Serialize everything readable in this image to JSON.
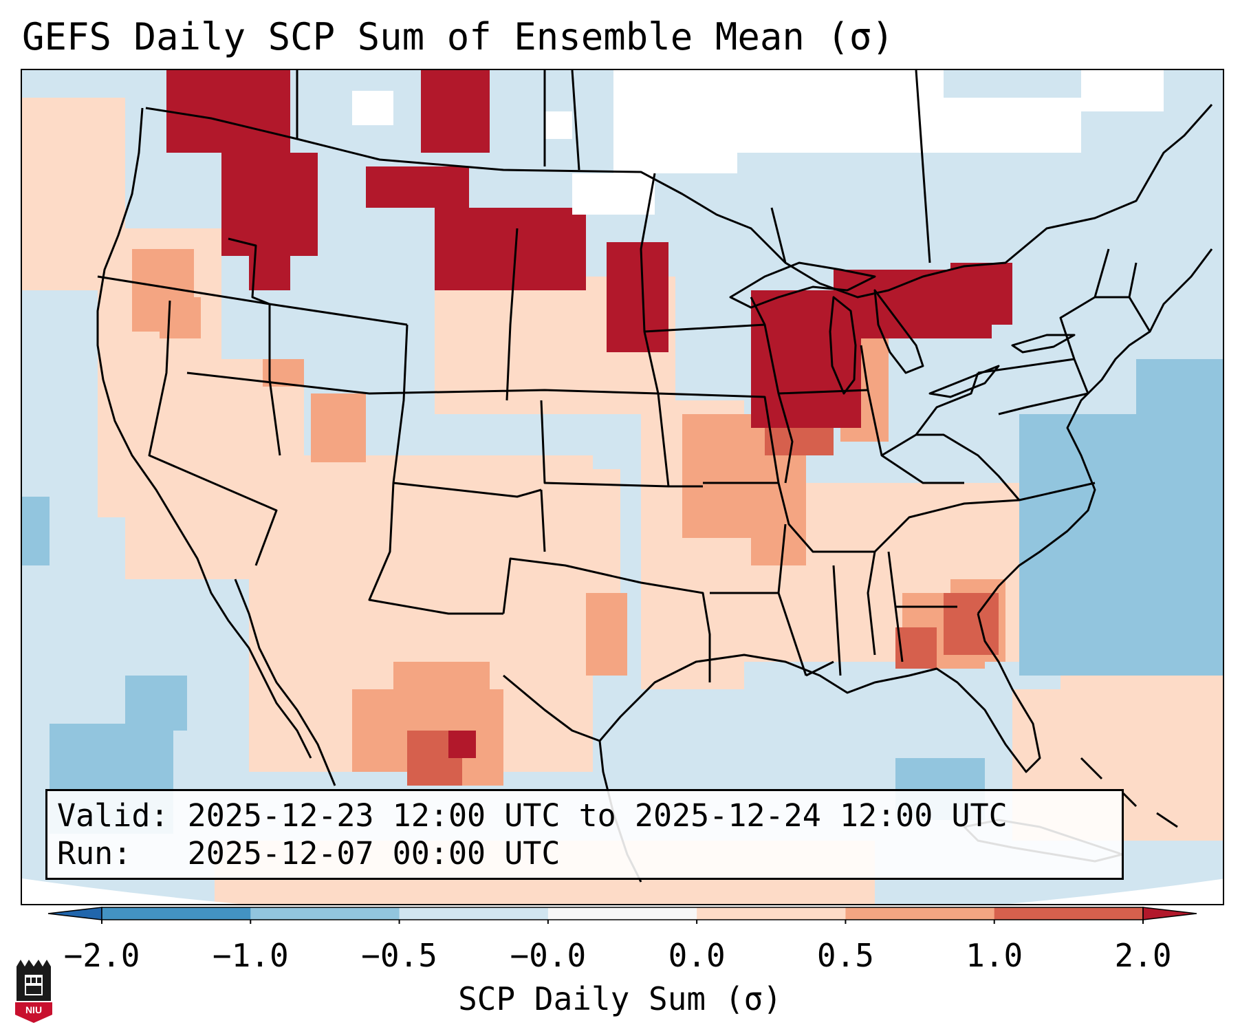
{
  "title": "GEFS Daily SCP Sum of Ensemble Mean (σ)",
  "info": {
    "valid_line": "Valid: 2025-12-23 12:00 UTC to 2025-12-24 12:00 UTC",
    "run_line": "Run:   2025-12-07 00:00 UTC"
  },
  "colorbar": {
    "label": "SCP Daily Sum (σ)",
    "ticks": [
      "−2.0",
      "−1.0",
      "−0.5",
      "−0.0",
      "0.0",
      "0.5",
      "1.0",
      "2.0"
    ],
    "bin_colors": [
      "#4393c3",
      "#92c5de",
      "#d1e5f0",
      "#f7f7f7",
      "#fddbc7",
      "#f4a582",
      "#d6604d"
    ],
    "under_color": "#2166ac",
    "over_color": "#b2182b"
  },
  "logo": {
    "text": "NIU"
  },
  "colors": {
    "background_field": "#d1e5f0",
    "weak_positive": "#fddbc7",
    "moderate_positive": "#f4a582",
    "strong_positive": "#d6604d",
    "extreme_positive": "#b2182b",
    "weak_negative": "#92c5de",
    "near_zero": "#ffffff"
  }
}
